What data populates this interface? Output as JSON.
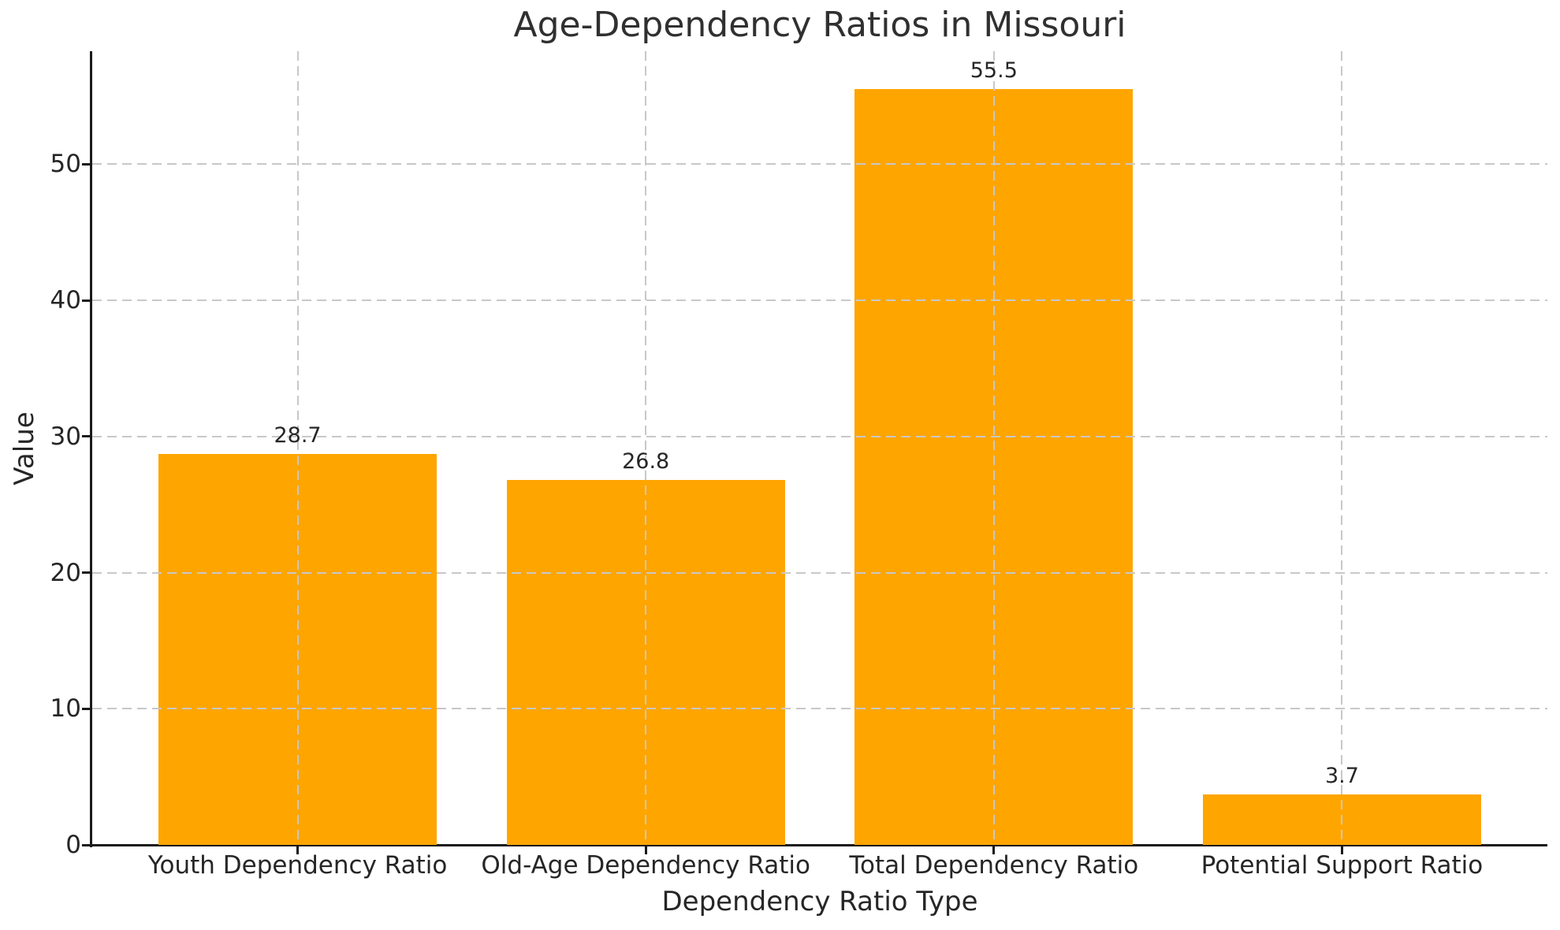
{
  "figure": {
    "title": "Age-Dependency Ratios in Missouri",
    "xlabel": "Dependency Ratio Type",
    "ylabel": "Value"
  },
  "chart_data": {
    "type": "bar",
    "title": "Age-Dependency Ratios in Missouri",
    "xlabel": "Dependency Ratio Type",
    "ylabel": "Value",
    "categories": [
      "Youth Dependency Ratio",
      "Old-Age Dependency Ratio",
      "Total Dependency Ratio",
      "Potential Support Ratio"
    ],
    "values": [
      28.7,
      26.8,
      55.5,
      3.7
    ],
    "bar_labels": [
      "28.7",
      "26.8",
      "55.5",
      "3.7"
    ],
    "yticks": [
      0,
      10,
      20,
      30,
      40,
      50
    ],
    "ylim": [
      0,
      58.3
    ],
    "bar_color": "#FFA500",
    "grid": {
      "axis": "both",
      "style": "dashed",
      "color": "#c8c8c8",
      "over_bars": true
    },
    "legend": null,
    "background": "#ffffff",
    "spine_color": "#1a1a1a",
    "bar_width_fraction": 0.8
  }
}
